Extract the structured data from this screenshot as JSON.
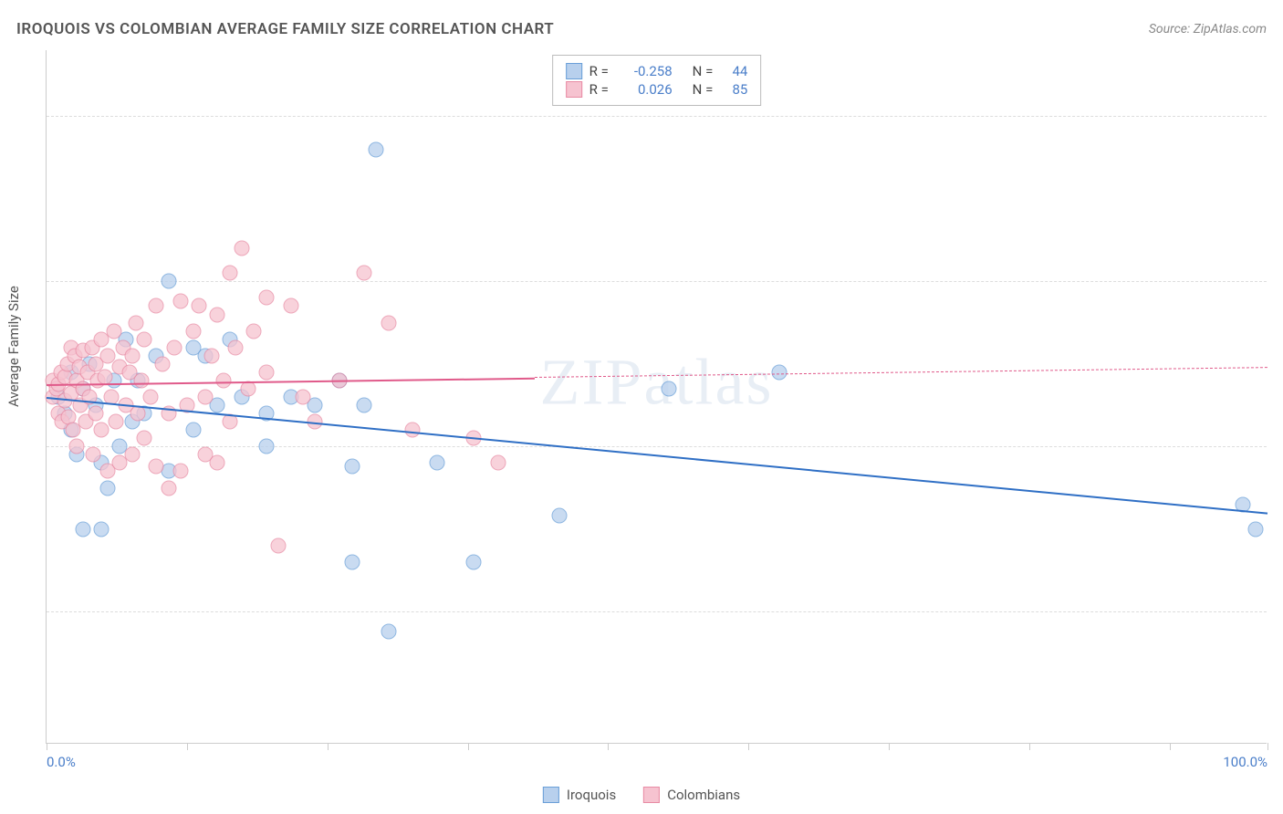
{
  "title": "IROQUOIS VS COLOMBIAN AVERAGE FAMILY SIZE CORRELATION CHART",
  "source_label": "Source: ZipAtlas.com",
  "watermark": "ZIPatlas",
  "yaxis_label": "Average Family Size",
  "chart": {
    "type": "scatter",
    "xlim": [
      0,
      100
    ],
    "ylim": [
      1.2,
      5.4
    ],
    "yticks": [
      2.0,
      3.0,
      4.0,
      5.0
    ],
    "xtick_positions": [
      0,
      11.5,
      23,
      34.5,
      46,
      57.5,
      69,
      80.5,
      92,
      100
    ],
    "xtick_labels_visible": {
      "0": "0.0%",
      "100": "100.0%"
    },
    "grid_color": "#dddddd",
    "axis_color": "#cccccc",
    "tick_label_color": "#4a7ec9",
    "background_color": "#ffffff",
    "point_radius": 8.5,
    "point_opacity": 0.75
  },
  "series": [
    {
      "name": "Iroquois",
      "fill_color": "#b8d0ed",
      "stroke_color": "#6a9fd8",
      "trend_color": "#2f6fc5",
      "R": "-0.258",
      "N": "44",
      "trend": {
        "x1": 0,
        "y1": 3.3,
        "x2": 100,
        "y2": 2.6
      },
      "points": [
        [
          1,
          3.3
        ],
        [
          1.5,
          3.2
        ],
        [
          2,
          3.45
        ],
        [
          2,
          3.1
        ],
        [
          2.5,
          2.95
        ],
        [
          3,
          3.35
        ],
        [
          3,
          2.5
        ],
        [
          3.5,
          3.5
        ],
        [
          4,
          3.25
        ],
        [
          4.5,
          2.9
        ],
        [
          4.5,
          2.5
        ],
        [
          5,
          2.75
        ],
        [
          5.5,
          3.4
        ],
        [
          6,
          3.0
        ],
        [
          6.5,
          3.65
        ],
        [
          7,
          3.15
        ],
        [
          7.5,
          3.4
        ],
        [
          8,
          3.2
        ],
        [
          9,
          3.55
        ],
        [
          10,
          4.0
        ],
        [
          10,
          2.85
        ],
        [
          12,
          3.1
        ],
        [
          12,
          3.6
        ],
        [
          13,
          3.55
        ],
        [
          14,
          3.25
        ],
        [
          15,
          3.65
        ],
        [
          16,
          3.3
        ],
        [
          18,
          3.2
        ],
        [
          18,
          3.0
        ],
        [
          20,
          3.3
        ],
        [
          22,
          3.25
        ],
        [
          24,
          3.4
        ],
        [
          25,
          2.3
        ],
        [
          25,
          2.88
        ],
        [
          26,
          3.25
        ],
        [
          27,
          4.8
        ],
        [
          28,
          1.88
        ],
        [
          32,
          2.9
        ],
        [
          35,
          2.3
        ],
        [
          42,
          2.58
        ],
        [
          51,
          3.35
        ],
        [
          60,
          3.45
        ],
        [
          98,
          2.65
        ],
        [
          99,
          2.5
        ]
      ]
    },
    {
      "name": "Colombians",
      "fill_color": "#f6c3d0",
      "stroke_color": "#e88ba4",
      "trend_color": "#e05a8a",
      "R": "0.026",
      "N": "85",
      "trend": {
        "x1": 0,
        "y1": 3.38,
        "x2": 100,
        "y2": 3.48
      },
      "trend_solid_until": 40,
      "points": [
        [
          0.5,
          3.3
        ],
        [
          0.5,
          3.4
        ],
        [
          0.8,
          3.35
        ],
        [
          1,
          3.2
        ],
        [
          1,
          3.38
        ],
        [
          1.2,
          3.45
        ],
        [
          1.3,
          3.15
        ],
        [
          1.5,
          3.42
        ],
        [
          1.5,
          3.28
        ],
        [
          1.7,
          3.5
        ],
        [
          1.8,
          3.18
        ],
        [
          2,
          3.6
        ],
        [
          2,
          3.32
        ],
        [
          2.2,
          3.1
        ],
        [
          2.3,
          3.55
        ],
        [
          2.5,
          3.4
        ],
        [
          2.5,
          3.0
        ],
        [
          2.7,
          3.48
        ],
        [
          2.8,
          3.25
        ],
        [
          3,
          3.58
        ],
        [
          3,
          3.35
        ],
        [
          3.2,
          3.15
        ],
        [
          3.4,
          3.45
        ],
        [
          3.5,
          3.3
        ],
        [
          3.7,
          3.6
        ],
        [
          3.8,
          2.95
        ],
        [
          4,
          3.5
        ],
        [
          4,
          3.2
        ],
        [
          4.2,
          3.4
        ],
        [
          4.5,
          3.65
        ],
        [
          4.5,
          3.1
        ],
        [
          4.8,
          3.42
        ],
        [
          5,
          2.85
        ],
        [
          5,
          3.55
        ],
        [
          5.3,
          3.3
        ],
        [
          5.5,
          3.7
        ],
        [
          5.7,
          3.15
        ],
        [
          6,
          3.48
        ],
        [
          6,
          2.9
        ],
        [
          6.3,
          3.6
        ],
        [
          6.5,
          3.25
        ],
        [
          6.8,
          3.45
        ],
        [
          7,
          2.95
        ],
        [
          7,
          3.55
        ],
        [
          7.3,
          3.75
        ],
        [
          7.5,
          3.2
        ],
        [
          7.8,
          3.4
        ],
        [
          8,
          3.65
        ],
        [
          8,
          3.05
        ],
        [
          8.5,
          3.3
        ],
        [
          9,
          3.85
        ],
        [
          9,
          2.88
        ],
        [
          9.5,
          3.5
        ],
        [
          10,
          3.2
        ],
        [
          10,
          2.75
        ],
        [
          10.5,
          3.6
        ],
        [
          11,
          3.88
        ],
        [
          11,
          2.85
        ],
        [
          11.5,
          3.25
        ],
        [
          12,
          3.7
        ],
        [
          12.5,
          3.85
        ],
        [
          13,
          3.3
        ],
        [
          13,
          2.95
        ],
        [
          13.5,
          3.55
        ],
        [
          14,
          3.8
        ],
        [
          14,
          2.9
        ],
        [
          14.5,
          3.4
        ],
        [
          15,
          4.05
        ],
        [
          15,
          3.15
        ],
        [
          15.5,
          3.6
        ],
        [
          16,
          4.2
        ],
        [
          16.5,
          3.35
        ],
        [
          17,
          3.7
        ],
        [
          18,
          3.9
        ],
        [
          18,
          3.45
        ],
        [
          19,
          2.4
        ],
        [
          20,
          3.85
        ],
        [
          21,
          3.3
        ],
        [
          22,
          3.15
        ],
        [
          24,
          3.4
        ],
        [
          26,
          4.05
        ],
        [
          28,
          3.75
        ],
        [
          30,
          3.1
        ],
        [
          35,
          3.05
        ],
        [
          37,
          2.9
        ]
      ]
    }
  ],
  "bottom_legend": [
    {
      "swatch_fill": "#b8d0ed",
      "swatch_stroke": "#6a9fd8",
      "label": "Iroquois"
    },
    {
      "swatch_fill": "#f6c3d0",
      "swatch_stroke": "#e88ba4",
      "label": "Colombians"
    }
  ]
}
